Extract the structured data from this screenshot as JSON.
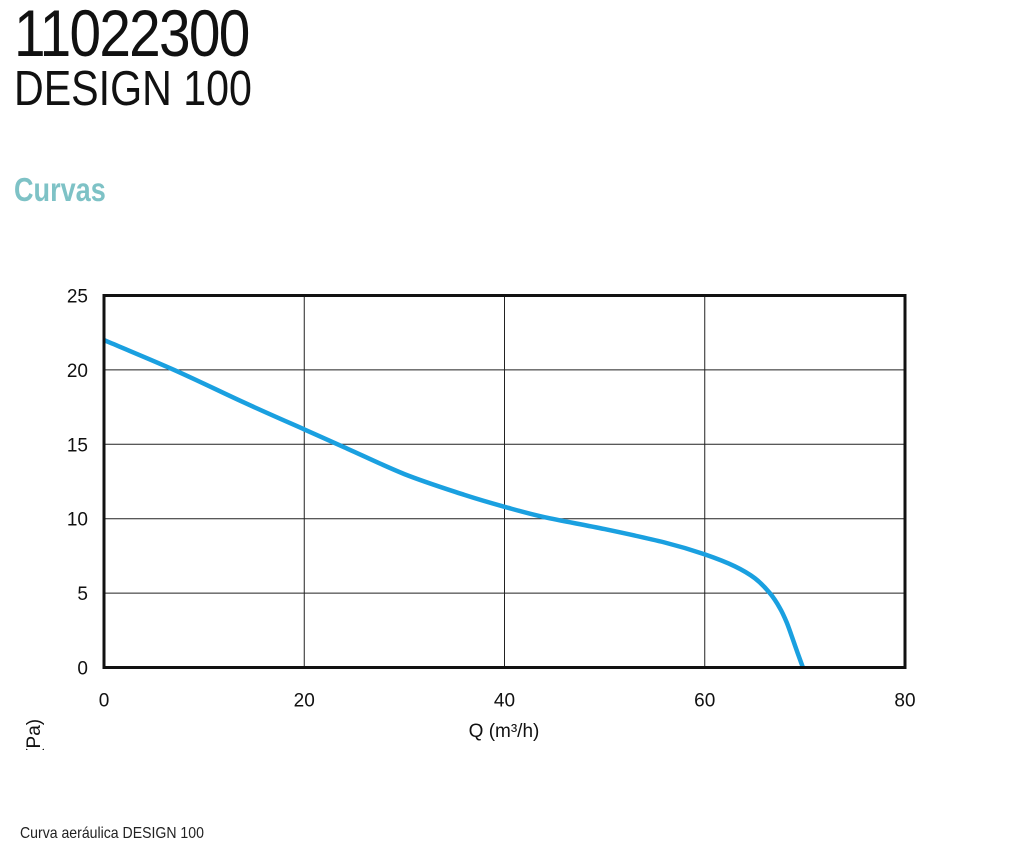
{
  "header": {
    "product_code": "11022300",
    "product_name": "DESIGN 100",
    "section_title": "Curvas"
  },
  "caption": "Curva aeráulica DESIGN 100",
  "colors": {
    "section_title": "#7ec2c6",
    "curve": "#1aa0e0",
    "grid": "#222222"
  },
  "chart_data": {
    "type": "line",
    "xlabel": "Q (m³/h)",
    "ylabel": "ΔP (Pa)",
    "xlim": [
      0,
      80
    ],
    "ylim": [
      0,
      25
    ],
    "x_ticks": [
      "0",
      "20",
      "40",
      "60",
      "80"
    ],
    "y_ticks": [
      "0",
      "5",
      "10",
      "15",
      "20",
      "25"
    ],
    "grid": true,
    "series": [
      {
        "x": [
          0,
          7,
          14,
          20,
          24,
          30,
          36,
          40,
          44,
          50,
          56,
          60,
          63,
          65,
          66.5,
          67.5,
          68.2,
          69,
          69.8
        ],
        "y": [
          22,
          20,
          17.8,
          16,
          14.8,
          13,
          11.6,
          10.8,
          10.1,
          9.3,
          8.4,
          7.6,
          6.8,
          6.0,
          5.0,
          4.0,
          3.0,
          1.5,
          0
        ]
      }
    ]
  }
}
